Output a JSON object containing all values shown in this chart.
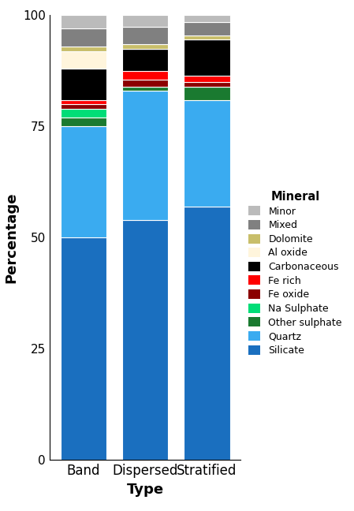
{
  "categories": [
    "Band",
    "Dispersed",
    "Stratified"
  ],
  "minerals": [
    "Silicate",
    "Quartz",
    "Other sulphate",
    "Na Sulphate",
    "Fe oxide",
    "Fe rich",
    "Carbonaceous",
    "Al oxide",
    "Dolomite",
    "Mixed",
    "Minor"
  ],
  "colors": {
    "Silicate": "#1A6FBF",
    "Quartz": "#3AABF0",
    "Other sulphate": "#1A7A30",
    "Na Sulphate": "#00DD77",
    "Fe oxide": "#8B0000",
    "Fe rich": "#FF0000",
    "Carbonaceous": "#000000",
    "Al oxide": "#FFF5DC",
    "Dolomite": "#C8BE6A",
    "Mixed": "#808080",
    "Minor": "#BBBBBB"
  },
  "values": {
    "Silicate": [
      50,
      54,
      57
    ],
    "Quartz": [
      25,
      29,
      24
    ],
    "Other sulphate": [
      2,
      1,
      3
    ],
    "Na Sulphate": [
      2,
      0,
      0
    ],
    "Fe oxide": [
      1,
      1.5,
      1
    ],
    "Fe rich": [
      1,
      2,
      1.5
    ],
    "Carbonaceous": [
      7,
      5,
      8
    ],
    "Al oxide": [
      4,
      0,
      0
    ],
    "Dolomite": [
      1,
      1,
      1
    ],
    "Mixed": [
      4,
      4,
      3
    ],
    "Minor": [
      3,
      2.5,
      1.5
    ]
  },
  "ylabel": "Percentage",
  "xlabel": "Type",
  "legend_title": "Mineral",
  "ylim": [
    0,
    100
  ],
  "bar_width": 0.75,
  "background_color": "#FFFFFF",
  "legend_order": [
    "Minor",
    "Mixed",
    "Dolomite",
    "Al oxide",
    "Carbonaceous",
    "Fe rich",
    "Fe oxide",
    "Na Sulphate",
    "Other sulphate",
    "Quartz",
    "Silicate"
  ]
}
